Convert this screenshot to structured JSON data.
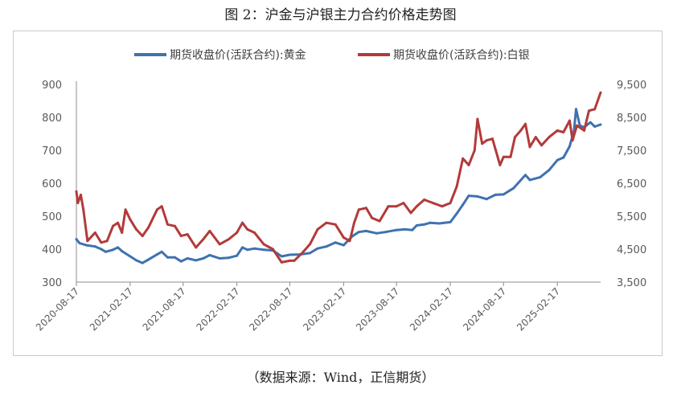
{
  "figure": {
    "title": "图 2：沪金与沪银主力合约价格走势图",
    "source": "（数据来源：Wind，正信期货）"
  },
  "colors": {
    "gold": "#3f72af",
    "silver": "#b33a3a",
    "axis": "#8c8c8c",
    "text": "#595959"
  },
  "chart_data": {
    "type": "line",
    "x_type": "date",
    "x_ticks": [
      "2020-08-17",
      "2021-02-17",
      "2021-08-17",
      "2022-02-17",
      "2022-08-17",
      "2023-02-17",
      "2023-08-17",
      "2024-02-17",
      "2024-08-17",
      "2025-02-17"
    ],
    "xlim": [
      "2020-08-17",
      "2025-07-15"
    ],
    "y_left": {
      "ticks": [
        "300",
        "400",
        "500",
        "600",
        "700",
        "800",
        "900"
      ],
      "lim": [
        300,
        900
      ]
    },
    "y_right": {
      "ticks": [
        "3,500",
        "4,500",
        "5,500",
        "6,500",
        "7,500",
        "8,500",
        "9,500"
      ],
      "lim": [
        3500,
        9500
      ]
    },
    "grid": false,
    "legend_position": "top",
    "series": [
      {
        "name": "期货收盘价(活跃合约):黄金",
        "axis": "left",
        "color": "#3f72af",
        "points": [
          [
            "2020-08-17",
            430
          ],
          [
            "2020-08-28",
            418
          ],
          [
            "2020-09-20",
            412
          ],
          [
            "2020-10-20",
            408
          ],
          [
            "2020-11-10",
            400
          ],
          [
            "2020-11-25",
            392
          ],
          [
            "2020-12-20",
            398
          ],
          [
            "2021-01-06",
            405
          ],
          [
            "2021-01-20",
            394
          ],
          [
            "2021-02-17",
            378
          ],
          [
            "2021-03-10",
            366
          ],
          [
            "2021-03-31",
            358
          ],
          [
            "2021-04-20",
            368
          ],
          [
            "2021-05-20",
            384
          ],
          [
            "2021-06-05",
            392
          ],
          [
            "2021-06-25",
            375
          ],
          [
            "2021-07-20",
            375
          ],
          [
            "2021-08-10",
            363
          ],
          [
            "2021-09-01",
            372
          ],
          [
            "2021-09-30",
            366
          ],
          [
            "2021-10-25",
            372
          ],
          [
            "2021-11-16",
            382
          ],
          [
            "2021-12-20",
            372
          ],
          [
            "2022-01-20",
            374
          ],
          [
            "2022-02-17",
            380
          ],
          [
            "2022-03-08",
            405
          ],
          [
            "2022-03-25",
            398
          ],
          [
            "2022-04-18",
            402
          ],
          [
            "2022-05-20",
            398
          ],
          [
            "2022-06-20",
            396
          ],
          [
            "2022-07-20",
            378
          ],
          [
            "2022-08-17",
            383
          ],
          [
            "2022-09-20",
            384
          ],
          [
            "2022-10-25",
            388
          ],
          [
            "2022-11-20",
            402
          ],
          [
            "2022-12-20",
            408
          ],
          [
            "2023-01-20",
            420
          ],
          [
            "2023-02-17",
            412
          ],
          [
            "2023-03-20",
            440
          ],
          [
            "2023-04-10",
            452
          ],
          [
            "2023-05-05",
            455
          ],
          [
            "2023-06-10",
            448
          ],
          [
            "2023-07-10",
            452
          ],
          [
            "2023-08-17",
            458
          ],
          [
            "2023-09-15",
            460
          ],
          [
            "2023-10-10",
            458
          ],
          [
            "2023-10-25",
            472
          ],
          [
            "2023-11-20",
            475
          ],
          [
            "2023-12-10",
            480
          ],
          [
            "2024-01-10",
            478
          ],
          [
            "2024-02-17",
            482
          ],
          [
            "2024-03-10",
            508
          ],
          [
            "2024-03-31",
            535
          ],
          [
            "2024-04-20",
            562
          ],
          [
            "2024-05-20",
            560
          ],
          [
            "2024-06-20",
            552
          ],
          [
            "2024-07-20",
            565
          ],
          [
            "2024-08-17",
            566
          ],
          [
            "2024-09-20",
            585
          ],
          [
            "2024-10-31",
            625
          ],
          [
            "2024-11-15",
            610
          ],
          [
            "2024-12-20",
            618
          ],
          [
            "2025-01-20",
            640
          ],
          [
            "2025-02-17",
            670
          ],
          [
            "2025-03-10",
            678
          ],
          [
            "2025-03-31",
            712
          ],
          [
            "2025-04-15",
            760
          ],
          [
            "2025-04-22",
            825
          ],
          [
            "2025-05-05",
            775
          ],
          [
            "2025-05-20",
            770
          ],
          [
            "2025-06-10",
            785
          ],
          [
            "2025-06-25",
            772
          ],
          [
            "2025-07-15",
            778
          ]
        ]
      },
      {
        "name": "期货收盘价(活跃合约):白银",
        "axis": "right",
        "color": "#b33a3a",
        "points": [
          [
            "2020-08-17",
            6250
          ],
          [
            "2020-08-22",
            5900
          ],
          [
            "2020-09-01",
            6150
          ],
          [
            "2020-09-10",
            5700
          ],
          [
            "2020-09-24",
            4750
          ],
          [
            "2020-10-20",
            5000
          ],
          [
            "2020-11-10",
            4700
          ],
          [
            "2020-11-30",
            4750
          ],
          [
            "2020-12-20",
            5200
          ],
          [
            "2021-01-06",
            5300
          ],
          [
            "2021-01-20",
            5000
          ],
          [
            "2021-02-01",
            5700
          ],
          [
            "2021-02-17",
            5400
          ],
          [
            "2021-03-10",
            5100
          ],
          [
            "2021-03-31",
            4900
          ],
          [
            "2021-04-20",
            5150
          ],
          [
            "2021-05-20",
            5700
          ],
          [
            "2021-06-05",
            5800
          ],
          [
            "2021-06-25",
            5250
          ],
          [
            "2021-07-20",
            5200
          ],
          [
            "2021-08-10",
            4900
          ],
          [
            "2021-09-01",
            4950
          ],
          [
            "2021-09-30",
            4550
          ],
          [
            "2021-10-25",
            4800
          ],
          [
            "2021-11-16",
            5050
          ],
          [
            "2021-12-20",
            4650
          ],
          [
            "2022-01-20",
            4800
          ],
          [
            "2022-02-17",
            5000
          ],
          [
            "2022-03-08",
            5300
          ],
          [
            "2022-03-25",
            5100
          ],
          [
            "2022-04-18",
            5000
          ],
          [
            "2022-05-20",
            4650
          ],
          [
            "2022-06-20",
            4500
          ],
          [
            "2022-07-20",
            4100
          ],
          [
            "2022-08-17",
            4150
          ],
          [
            "2022-09-01",
            4150
          ],
          [
            "2022-09-25",
            4350
          ],
          [
            "2022-10-25",
            4650
          ],
          [
            "2022-11-20",
            5100
          ],
          [
            "2022-12-20",
            5300
          ],
          [
            "2023-01-20",
            5250
          ],
          [
            "2023-02-17",
            4850
          ],
          [
            "2023-03-10",
            4750
          ],
          [
            "2023-03-25",
            5300
          ],
          [
            "2023-04-10",
            5700
          ],
          [
            "2023-05-05",
            5750
          ],
          [
            "2023-05-25",
            5450
          ],
          [
            "2023-06-20",
            5350
          ],
          [
            "2023-07-20",
            5800
          ],
          [
            "2023-08-17",
            5800
          ],
          [
            "2023-09-10",
            5900
          ],
          [
            "2023-10-05",
            5600
          ],
          [
            "2023-10-25",
            5800
          ],
          [
            "2023-11-20",
            6000
          ],
          [
            "2023-12-20",
            5900
          ],
          [
            "2024-01-20",
            5800
          ],
          [
            "2024-02-17",
            5900
          ],
          [
            "2024-03-10",
            6400
          ],
          [
            "2024-03-31",
            7250
          ],
          [
            "2024-04-20",
            7050
          ],
          [
            "2024-05-10",
            7500
          ],
          [
            "2024-05-20",
            8450
          ],
          [
            "2024-06-05",
            7700
          ],
          [
            "2024-06-20",
            7800
          ],
          [
            "2024-07-10",
            7850
          ],
          [
            "2024-08-05",
            7050
          ],
          [
            "2024-08-17",
            7300
          ],
          [
            "2024-09-10",
            7300
          ],
          [
            "2024-09-25",
            7900
          ],
          [
            "2024-10-15",
            8100
          ],
          [
            "2024-10-31",
            8300
          ],
          [
            "2024-11-15",
            7600
          ],
          [
            "2024-12-05",
            7900
          ],
          [
            "2024-12-25",
            7650
          ],
          [
            "2025-01-20",
            7900
          ],
          [
            "2025-02-17",
            8100
          ],
          [
            "2025-03-10",
            8050
          ],
          [
            "2025-03-31",
            8400
          ],
          [
            "2025-04-10",
            7800
          ],
          [
            "2025-04-25",
            8250
          ],
          [
            "2025-05-20",
            8100
          ],
          [
            "2025-06-05",
            8700
          ],
          [
            "2025-06-25",
            8750
          ],
          [
            "2025-07-15",
            9250
          ]
        ]
      }
    ]
  }
}
